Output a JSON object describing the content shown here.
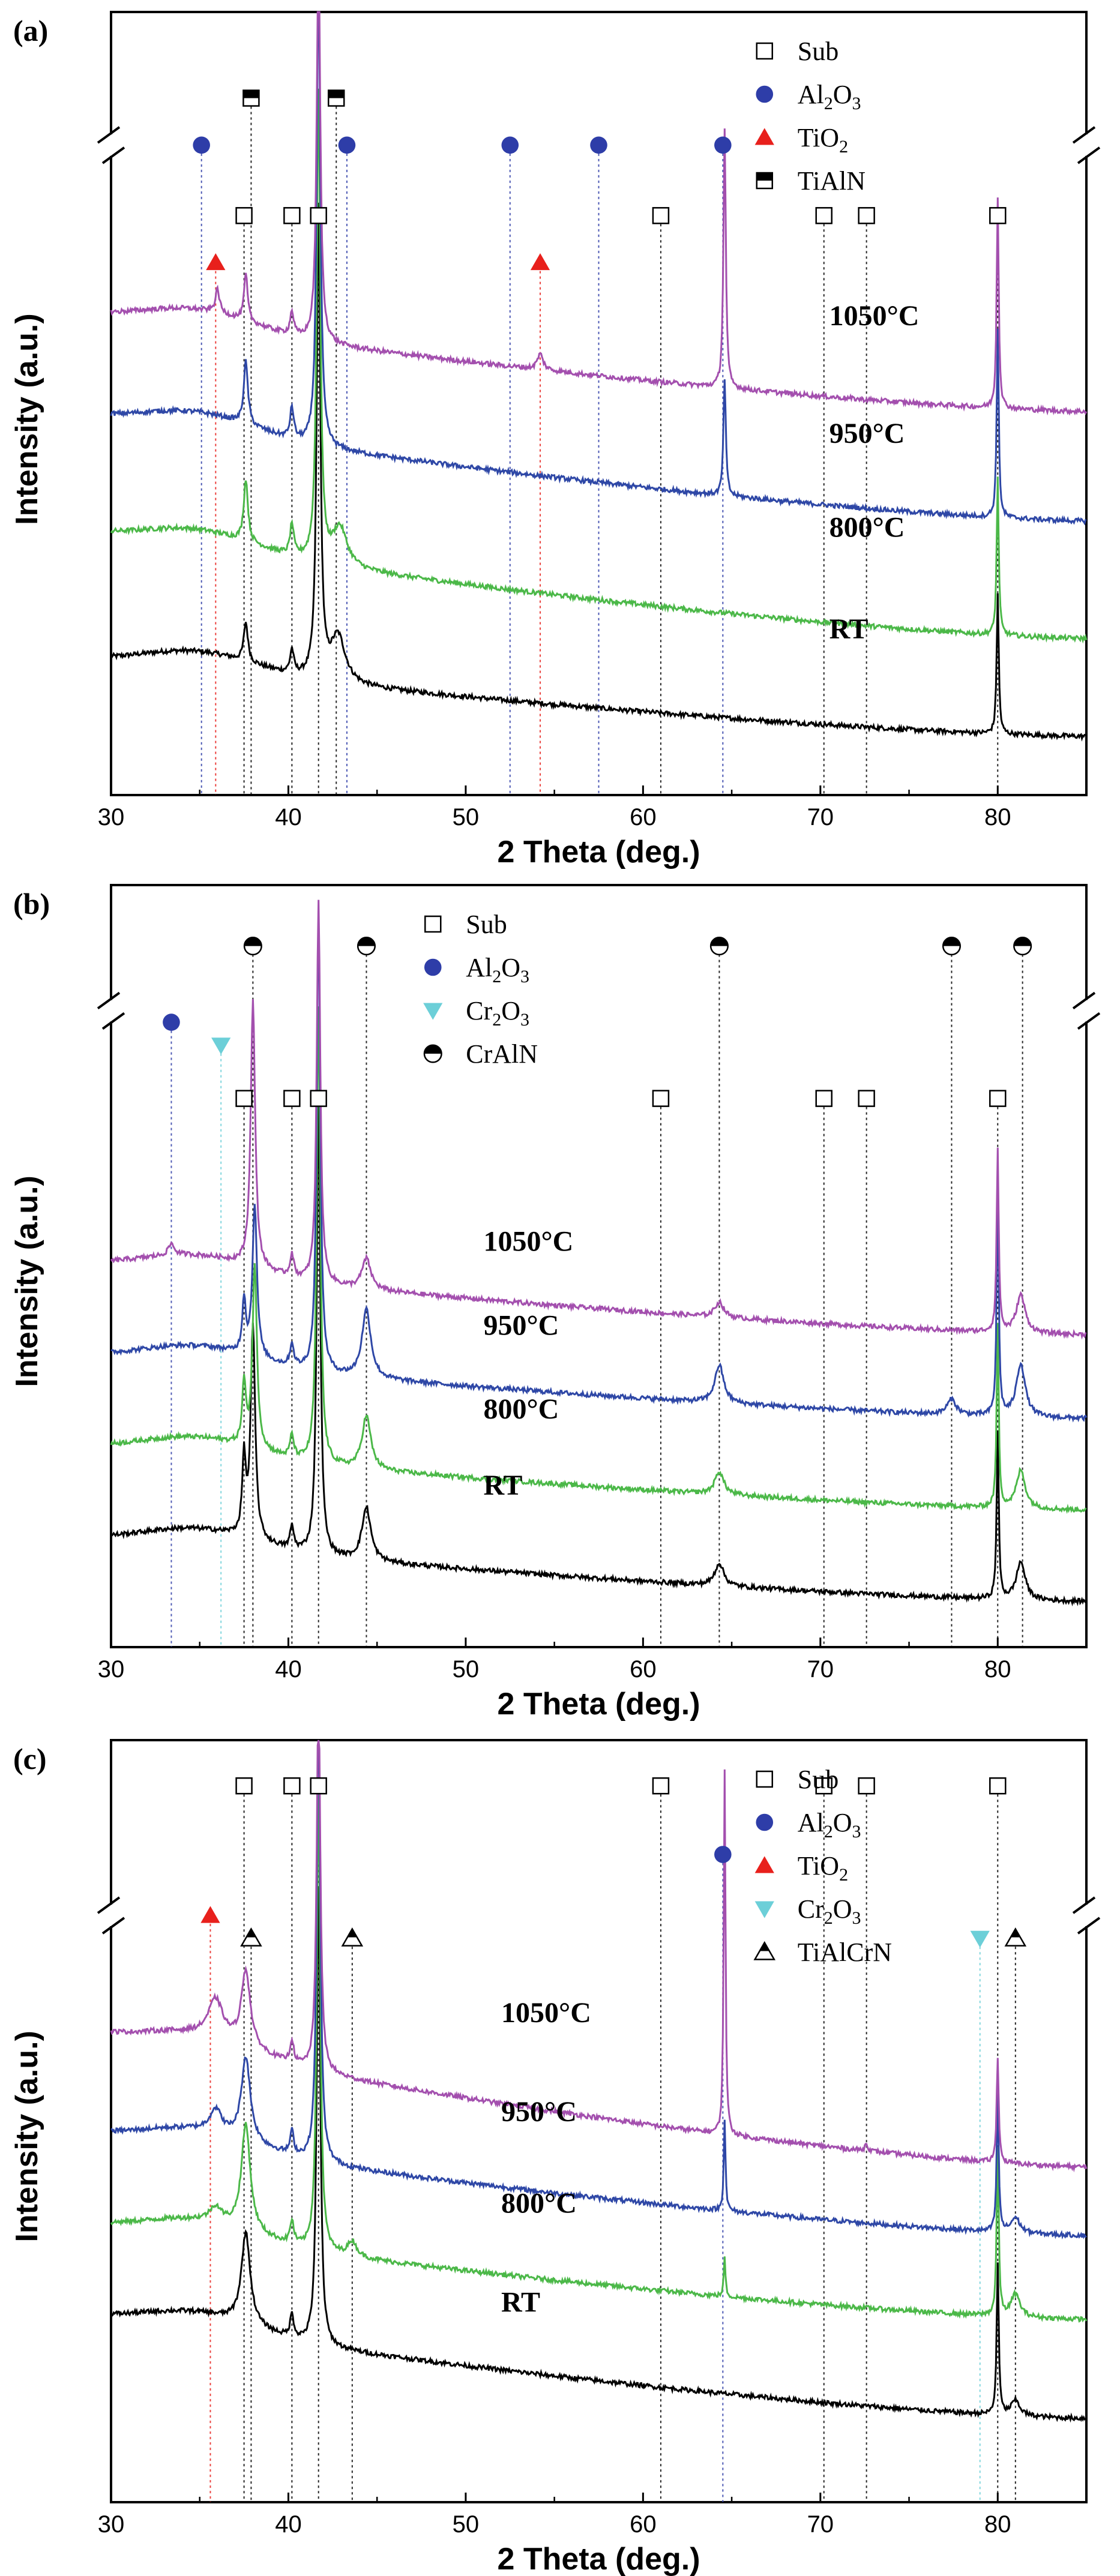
{
  "chart_data": [
    {
      "type": "line",
      "panel": "(a)",
      "xlabel": "2 Theta (deg.)",
      "ylabel": "Intensity (a.u.)",
      "xlim": [
        30,
        85
      ],
      "xticks": [
        "30",
        "40",
        "50",
        "60",
        "70",
        "80"
      ],
      "legend": [
        {
          "label": "Sub",
          "marker": "open-square",
          "color": "#000000"
        },
        {
          "label": "Al",
          "sub1": "2",
          "mid": "O",
          "sub2": "3",
          "marker": "circle",
          "color": "#2e3da8"
        },
        {
          "label": "TiO",
          "sub1": "2",
          "mid": "",
          "sub2": "",
          "marker": "triangle-up",
          "color": "#e8201c"
        },
        {
          "label": "TiAlN",
          "marker": "half-square",
          "color": "#000000"
        }
      ],
      "series": [
        {
          "name": "RT",
          "color": "#000000",
          "base": 0.17,
          "tail": 0.075
        },
        {
          "name": "800°C",
          "color": "#4bb848",
          "base": 0.33,
          "tail": 0.2
        },
        {
          "name": "950°C",
          "color": "#2e47a6",
          "base": 0.48,
          "tail": 0.35
        },
        {
          "name": "1050°C",
          "color": "#a34fae",
          "base": 0.61,
          "tail": 0.49
        }
      ],
      "peaks": {
        "RT": [
          [
            37.6,
            0.05,
            0.14
          ],
          [
            40.2,
            0.03,
            0.12
          ],
          [
            41.7,
            0.6,
            0.12
          ],
          [
            42.8,
            0.06,
            0.5
          ],
          [
            80.0,
            0.18,
            0.07
          ]
        ],
        "800°C": [
          [
            37.6,
            0.08,
            0.14
          ],
          [
            40.2,
            0.04,
            0.12
          ],
          [
            41.7,
            0.6,
            0.12
          ],
          [
            42.9,
            0.05,
            0.5
          ],
          [
            80.0,
            0.2,
            0.07
          ]
        ],
        "950°C": [
          [
            37.6,
            0.08,
            0.14
          ],
          [
            40.2,
            0.04,
            0.12
          ],
          [
            41.7,
            0.6,
            0.12
          ],
          [
            64.6,
            0.15,
            0.08
          ],
          [
            80.0,
            0.24,
            0.07
          ]
        ],
        "1050°C": [
          [
            36.0,
            0.03,
            0.14
          ],
          [
            37.6,
            0.06,
            0.12
          ],
          [
            40.2,
            0.03,
            0.12
          ],
          [
            41.7,
            0.5,
            0.12
          ],
          [
            54.2,
            0.02,
            0.2
          ],
          [
            64.6,
            0.33,
            0.08
          ],
          [
            80.0,
            0.27,
            0.07
          ]
        ]
      },
      "marker_rows": [
        {
          "symbol": "open-square",
          "color": "#000000",
          "y": 0.74,
          "x": [
            37.5,
            40.2,
            41.7,
            61.0,
            70.2,
            72.6,
            80.0
          ]
        },
        {
          "symbol": "circle",
          "color": "#2e3da8",
          "y": 0.83,
          "x": [
            35.1,
            43.3,
            52.5,
            57.5,
            64.5
          ]
        },
        {
          "symbol": "triangle-up",
          "color": "#e8201c",
          "y": 0.68,
          "x": [
            35.9,
            54.2
          ]
        },
        {
          "symbol": "half-square",
          "color": "#000000",
          "y": 0.89,
          "x": [
            37.9,
            42.7
          ]
        }
      ],
      "label_positions": {
        "RT": [
          70.5,
          0.2
        ],
        "800°C": [
          70.5,
          0.33
        ],
        "950°C": [
          70.5,
          0.45
        ],
        "1050°C": [
          70.5,
          0.6
        ]
      }
    },
    {
      "type": "line",
      "panel": "(b)",
      "xlabel": "2 Theta (deg.)",
      "ylabel": "Intensity (a.u.)",
      "xlim": [
        30,
        85
      ],
      "xticks": [
        "30",
        "40",
        "50",
        "60",
        "70",
        "80"
      ],
      "legend": [
        {
          "label": "Sub",
          "marker": "open-square",
          "color": "#000000"
        },
        {
          "label": "Al",
          "sub1": "2",
          "mid": "O",
          "sub2": "3",
          "marker": "circle",
          "color": "#2e3da8"
        },
        {
          "label": "Cr",
          "sub1": "2",
          "mid": "O",
          "sub2": "3",
          "marker": "triangle-down",
          "color": "#6ccfd8"
        },
        {
          "label": "CrAlN",
          "marker": "half-circle",
          "color": "#000000"
        }
      ],
      "series": [
        {
          "name": "RT",
          "color": "#000000",
          "base": 0.14,
          "tail": 0.06
        },
        {
          "name": "800°C",
          "color": "#4bb848",
          "base": 0.26,
          "tail": 0.18
        },
        {
          "name": "950°C",
          "color": "#2e47a6",
          "base": 0.38,
          "tail": 0.3
        },
        {
          "name": "1050°C",
          "color": "#a34fae",
          "base": 0.5,
          "tail": 0.41
        }
      ],
      "peaks": {
        "RT": [
          [
            37.5,
            0.1,
            0.12
          ],
          [
            38.0,
            0.28,
            0.15
          ],
          [
            40.2,
            0.03,
            0.12
          ],
          [
            41.7,
            0.6,
            0.12
          ],
          [
            44.4,
            0.07,
            0.3
          ],
          [
            64.3,
            0.03,
            0.3
          ],
          [
            80.0,
            0.22,
            0.07
          ],
          [
            81.3,
            0.05,
            0.3
          ]
        ],
        "800°C": [
          [
            37.5,
            0.08,
            0.12
          ],
          [
            38.1,
            0.24,
            0.15
          ],
          [
            40.2,
            0.03,
            0.12
          ],
          [
            41.7,
            0.6,
            0.12
          ],
          [
            44.4,
            0.07,
            0.3
          ],
          [
            64.3,
            0.03,
            0.3
          ],
          [
            80.0,
            0.24,
            0.07
          ],
          [
            81.3,
            0.05,
            0.3
          ]
        ],
        "950°C": [
          [
            37.5,
            0.07,
            0.12
          ],
          [
            38.1,
            0.2,
            0.15
          ],
          [
            40.2,
            0.03,
            0.12
          ],
          [
            41.7,
            0.6,
            0.12
          ],
          [
            44.4,
            0.09,
            0.3
          ],
          [
            64.3,
            0.05,
            0.3
          ],
          [
            77.4,
            0.02,
            0.3
          ],
          [
            80.0,
            0.3,
            0.07
          ],
          [
            81.3,
            0.07,
            0.3
          ]
        ],
        "1050°C": [
          [
            33.4,
            0.015,
            0.2
          ],
          [
            38.0,
            0.35,
            0.15
          ],
          [
            40.2,
            0.03,
            0.12
          ],
          [
            41.7,
            0.5,
            0.12
          ],
          [
            44.4,
            0.04,
            0.3
          ],
          [
            64.3,
            0.02,
            0.3
          ],
          [
            80.0,
            0.24,
            0.07
          ],
          [
            81.3,
            0.05,
            0.3
          ]
        ]
      },
      "marker_rows": [
        {
          "symbol": "open-square",
          "color": "#000000",
          "y": 0.72,
          "x": [
            37.5,
            40.2,
            41.7,
            61.0,
            70.2,
            72.6,
            80.0
          ]
        },
        {
          "symbol": "circle",
          "color": "#2e3da8",
          "y": 0.82,
          "x": [
            33.4
          ]
        },
        {
          "symbol": "triangle-down",
          "color": "#6ccfd8",
          "y": 0.79,
          "x": [
            36.2
          ]
        },
        {
          "symbol": "half-circle",
          "color": "#000000",
          "y": 0.92,
          "x": [
            38.0,
            44.4,
            64.3,
            77.4,
            81.4
          ]
        }
      ],
      "label_positions": {
        "RT": [
          51.0,
          0.2
        ],
        "800°C": [
          51.0,
          0.3
        ],
        "950°C": [
          51.0,
          0.41
        ],
        "1050°C": [
          51.0,
          0.52
        ]
      }
    },
    {
      "type": "line",
      "panel": "(c)",
      "xlabel": "2 Theta (deg.)",
      "ylabel": "Intensity (a.u.)",
      "xlim": [
        30,
        85
      ],
      "xticks": [
        "30",
        "40",
        "50",
        "60",
        "70",
        "80"
      ],
      "legend": [
        {
          "label": "Sub",
          "marker": "open-square",
          "color": "#000000"
        },
        {
          "label": "Al",
          "sub1": "2",
          "mid": "O",
          "sub2": "3",
          "marker": "circle",
          "color": "#2e3da8"
        },
        {
          "label": "TiO",
          "sub1": "2",
          "mid": "",
          "sub2": "",
          "marker": "triangle-up",
          "color": "#e8201c"
        },
        {
          "label": "Cr",
          "sub1": "2",
          "mid": "O",
          "sub2": "3",
          "marker": "triangle-down",
          "color": "#6ccfd8"
        },
        {
          "label": "TiAlCrN",
          "marker": "half-triangle",
          "color": "#000000"
        }
      ],
      "series": [
        {
          "name": "RT",
          "color": "#000000",
          "base": 0.24,
          "tail": 0.11
        },
        {
          "name": "800°C",
          "color": "#4bb848",
          "base": 0.36,
          "tail": 0.24
        },
        {
          "name": "950°C",
          "color": "#2e47a6",
          "base": 0.48,
          "tail": 0.35
        },
        {
          "name": "1050°C",
          "color": "#a34fae",
          "base": 0.61,
          "tail": 0.44
        }
      ],
      "peaks": {
        "RT": [
          [
            37.6,
            0.12,
            0.3
          ],
          [
            40.2,
            0.03,
            0.12
          ],
          [
            41.7,
            0.6,
            0.12
          ],
          [
            80.0,
            0.2,
            0.07
          ],
          [
            81.0,
            0.02,
            0.3
          ]
        ],
        "800°C": [
          [
            35.9,
            0.02,
            0.4
          ],
          [
            37.6,
            0.14,
            0.3
          ],
          [
            40.2,
            0.03,
            0.12
          ],
          [
            41.7,
            0.6,
            0.12
          ],
          [
            43.6,
            0.02,
            0.3
          ],
          [
            64.6,
            0.05,
            0.06
          ],
          [
            80.0,
            0.22,
            0.07
          ],
          [
            81.0,
            0.03,
            0.3
          ]
        ],
        "950°C": [
          [
            35.9,
            0.03,
            0.4
          ],
          [
            37.6,
            0.11,
            0.3
          ],
          [
            40.2,
            0.03,
            0.12
          ],
          [
            41.7,
            0.6,
            0.12
          ],
          [
            64.6,
            0.12,
            0.06
          ],
          [
            80.0,
            0.18,
            0.07
          ],
          [
            81.0,
            0.02,
            0.3
          ]
        ],
        "1050°C": [
          [
            35.9,
            0.05,
            0.5
          ],
          [
            37.6,
            0.1,
            0.3
          ],
          [
            40.2,
            0.03,
            0.12
          ],
          [
            41.7,
            0.5,
            0.12
          ],
          [
            64.6,
            0.48,
            0.06
          ],
          [
            72.6,
            0.01,
            0.1
          ],
          [
            80.0,
            0.14,
            0.07
          ]
        ]
      },
      "marker_rows": [
        {
          "symbol": "open-square",
          "color": "#000000",
          "y": 0.94,
          "x": [
            37.5,
            40.2,
            41.7,
            61.0,
            70.2,
            72.6,
            80.0
          ]
        },
        {
          "symbol": "circle",
          "color": "#2e3da8",
          "y": 0.85,
          "x": [
            64.5
          ]
        },
        {
          "symbol": "triangle-up",
          "color": "#e8201c",
          "y": 0.77,
          "x": [
            35.6
          ]
        },
        {
          "symbol": "triangle-down",
          "color": "#6ccfd8",
          "y": 0.74,
          "x": [
            79.0
          ]
        },
        {
          "symbol": "half-triangle",
          "color": "#000000",
          "y": 0.74,
          "x": [
            37.9,
            43.6,
            81.0
          ]
        }
      ],
      "label_positions": {
        "RT": [
          52.0,
          0.25
        ],
        "800°C": [
          52.0,
          0.38
        ],
        "950°C": [
          52.0,
          0.5
        ],
        "1050°C": [
          52.0,
          0.63
        ]
      }
    }
  ]
}
